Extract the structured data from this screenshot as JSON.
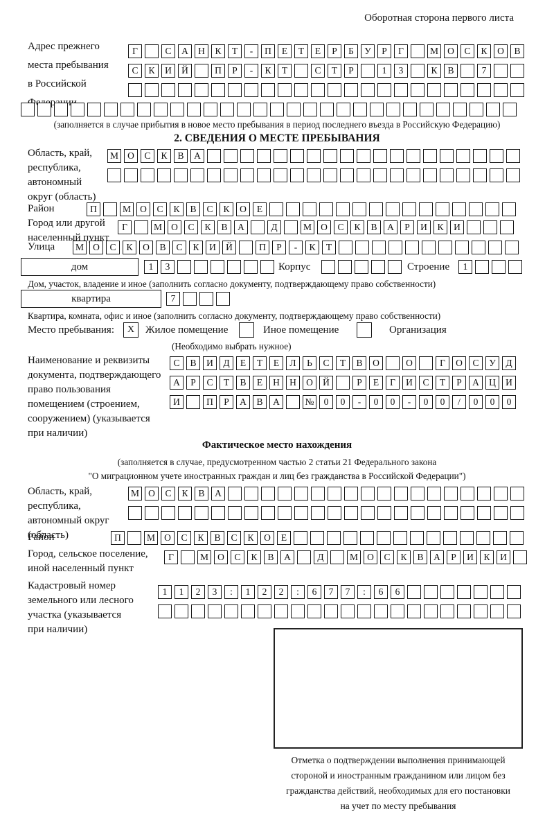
{
  "header": {
    "title": "Оборотная сторона первого листа"
  },
  "prev_address": {
    "label": "Адрес прежнего\nместа пребывания\nв Российской\nФедерации",
    "row1": [
      "Г",
      "",
      "С",
      "А",
      "Н",
      "К",
      "Т",
      "-",
      "П",
      "Е",
      "Т",
      "Е",
      "Р",
      "Б",
      "У",
      "Р",
      "Г",
      "",
      "М",
      "О",
      "С",
      "К",
      "О",
      "В"
    ],
    "row2": [
      "С",
      "К",
      "И",
      "Й",
      "",
      "П",
      "Р",
      "-",
      "К",
      "Т",
      "",
      "С",
      "Т",
      "Р",
      "",
      "1",
      "3",
      "",
      "К",
      "В",
      "",
      "7",
      "",
      ""
    ],
    "row3": [
      "",
      "",
      "",
      "",
      "",
      "",
      "",
      "",
      "",
      "",
      "",
      "",
      "",
      "",
      "",
      "",
      "",
      "",
      "",
      "",
      "",
      "",
      "",
      ""
    ],
    "row4": [
      "",
      "",
      "",
      "",
      "",
      "",
      "",
      "",
      "",
      "",
      "",
      "",
      "",
      "",
      "",
      "",
      "",
      "",
      "",
      "",
      "",
      "",
      "",
      "",
      "",
      "",
      "",
      "",
      "",
      ""
    ],
    "note": "(заполняется в случае прибытия в новое место пребывания в период последнего въезда в Российскую Федерацию)"
  },
  "section2": {
    "title": "2. СВЕДЕНИЯ О МЕСТЕ ПРЕБЫВАНИЯ",
    "region": {
      "label": "Область, край,\nреспублика,\nавтономный\nокруг (область)",
      "row1": [
        "М",
        "О",
        "С",
        "К",
        "В",
        "А",
        "",
        "",
        "",
        "",
        "",
        "",
        "",
        "",
        "",
        "",
        "",
        "",
        "",
        "",
        "",
        "",
        "",
        "",
        ""
      ],
      "row2": [
        "",
        "",
        "",
        "",
        "",
        "",
        "",
        "",
        "",
        "",
        "",
        "",
        "",
        "",
        "",
        "",
        "",
        "",
        "",
        "",
        "",
        "",
        "",
        "",
        ""
      ]
    },
    "district": {
      "label": "Район",
      "row": [
        "П",
        "",
        "М",
        "О",
        "С",
        "К",
        "В",
        "С",
        "К",
        "О",
        "Е",
        "",
        "",
        "",
        "",
        "",
        "",
        "",
        "",
        "",
        "",
        "",
        "",
        "",
        "",
        ""
      ]
    },
    "city": {
      "label": "Город или другой\nнаселенный пункт",
      "row": [
        "Г",
        "",
        "М",
        "О",
        "С",
        "К",
        "В",
        "А",
        "",
        "Д",
        "",
        "М",
        "О",
        "С",
        "К",
        "В",
        "А",
        "Р",
        "И",
        "К",
        "И",
        "",
        "",
        ""
      ]
    },
    "street": {
      "label": "Улица",
      "row": [
        "М",
        "О",
        "С",
        "К",
        "О",
        "В",
        "С",
        "К",
        "И",
        "Й",
        "",
        "П",
        "Р",
        "-",
        "К",
        "Т",
        "",
        "",
        "",
        "",
        "",
        "",
        "",
        "",
        "",
        "",
        ""
      ]
    },
    "house": {
      "box_label": "дом",
      "cells": [
        "1",
        "3",
        "",
        "",
        "",
        "",
        "",
        ""
      ],
      "korpus_label": "Корпус",
      "korpus_cells": [
        "",
        "",
        "",
        "",
        ""
      ],
      "stroenie_label": "Строение",
      "stroenie_cells": [
        "1",
        "",
        "",
        ""
      ]
    },
    "house_note": "Дом, участок, владение и иное (заполнить согласно документу, подтверждающему право собственности)",
    "apartment": {
      "box_label": "квартира",
      "cells": [
        "7",
        "",
        "",
        ""
      ]
    },
    "apartment_note": "Квартира, комната, офис и иное (заполнить согласно документу, подтверждающему право собственности)",
    "place_type": {
      "label": "Место пребывания:",
      "options": [
        {
          "label": "Жилое помещение",
          "checked": "X"
        },
        {
          "label": "Иное помещение",
          "checked": ""
        },
        {
          "label": "Организация",
          "checked": ""
        }
      ],
      "note": "(Необходимо выбрать нужное)"
    },
    "document": {
      "label": "Наименование и реквизиты\nдокумента, подтверждающего\nправо пользования\nпомещением (строением,\nсооружением) (указывается\nпри наличии)",
      "row1": [
        "С",
        "В",
        "И",
        "Д",
        "Е",
        "Т",
        "Е",
        "Л",
        "Ь",
        "С",
        "Т",
        "В",
        "О",
        "",
        "О",
        "",
        "Г",
        "О",
        "С",
        "У",
        "Д"
      ],
      "row2": [
        "А",
        "Р",
        "С",
        "Т",
        "В",
        "Е",
        "Н",
        "Н",
        "О",
        "Й",
        "",
        "Р",
        "Е",
        "Г",
        "И",
        "С",
        "Т",
        "Р",
        "А",
        "Ц",
        "И"
      ],
      "row3": [
        "И",
        "",
        "П",
        "Р",
        "А",
        "В",
        "А",
        "",
        "№",
        "0",
        "0",
        "-",
        "0",
        "0",
        "-",
        "0",
        "0",
        "/",
        "0",
        "0",
        "0"
      ]
    }
  },
  "actual_location": {
    "title": "Фактическое место нахождения",
    "note1": "(заполняется в случае, предусмотренном частью 2 статьи 21 Федерального закона",
    "note2": "\"О миграционном учете иностранных граждан и лиц без гражданства в Российской Федерации\")",
    "region": {
      "label": "Область, край,\nреспублика,\nавтономный округ\n(область)",
      "row1": [
        "М",
        "О",
        "С",
        "К",
        "В",
        "А",
        "",
        "",
        "",
        "",
        "",
        "",
        "",
        "",
        "",
        "",
        "",
        "",
        "",
        "",
        "",
        "",
        "",
        ""
      ],
      "row2": [
        "",
        "",
        "",
        "",
        "",
        "",
        "",
        "",
        "",
        "",
        "",
        "",
        "",
        "",
        "",
        "",
        "",
        "",
        "",
        "",
        "",
        "",
        "",
        ""
      ]
    },
    "district": {
      "label": "Район",
      "row": [
        "П",
        "",
        "М",
        "О",
        "С",
        "К",
        "В",
        "С",
        "К",
        "О",
        "Е",
        "",
        "",
        "",
        "",
        "",
        "",
        "",
        "",
        "",
        "",
        "",
        "",
        "",
        ""
      ]
    },
    "city": {
      "label": "Город, сельское поселение,\nиной населенный пункт",
      "row": [
        "Г",
        "",
        "М",
        "О",
        "С",
        "К",
        "В",
        "А",
        "",
        "Д",
        "",
        "М",
        "О",
        "С",
        "К",
        "В",
        "А",
        "Р",
        "И",
        "К",
        "И",
        ""
      ]
    },
    "cadastral": {
      "label": "Кадастровый номер\nземельного или лесного\nучастка (указывается\nпри наличии)",
      "row1": [
        "1",
        "1",
        "2",
        "3",
        ":",
        "1",
        "2",
        "2",
        ":",
        "6",
        "7",
        "7",
        ":",
        "6",
        "6",
        "",
        "",
        "",
        "",
        "",
        "",
        ""
      ],
      "row2": [
        "",
        "",
        "",
        "",
        "",
        "",
        "",
        "",
        "",
        "",
        "",
        "",
        "",
        "",
        "",
        "",
        "",
        "",
        "",
        "",
        "",
        ""
      ]
    }
  },
  "confirmation": {
    "caption": "Отметка о подтверждении выполнения принимающей\nстороной и иностранным гражданином или лицом без\nгражданства действий, необходимых для его постановки\nна учет по месту пребывания"
  }
}
